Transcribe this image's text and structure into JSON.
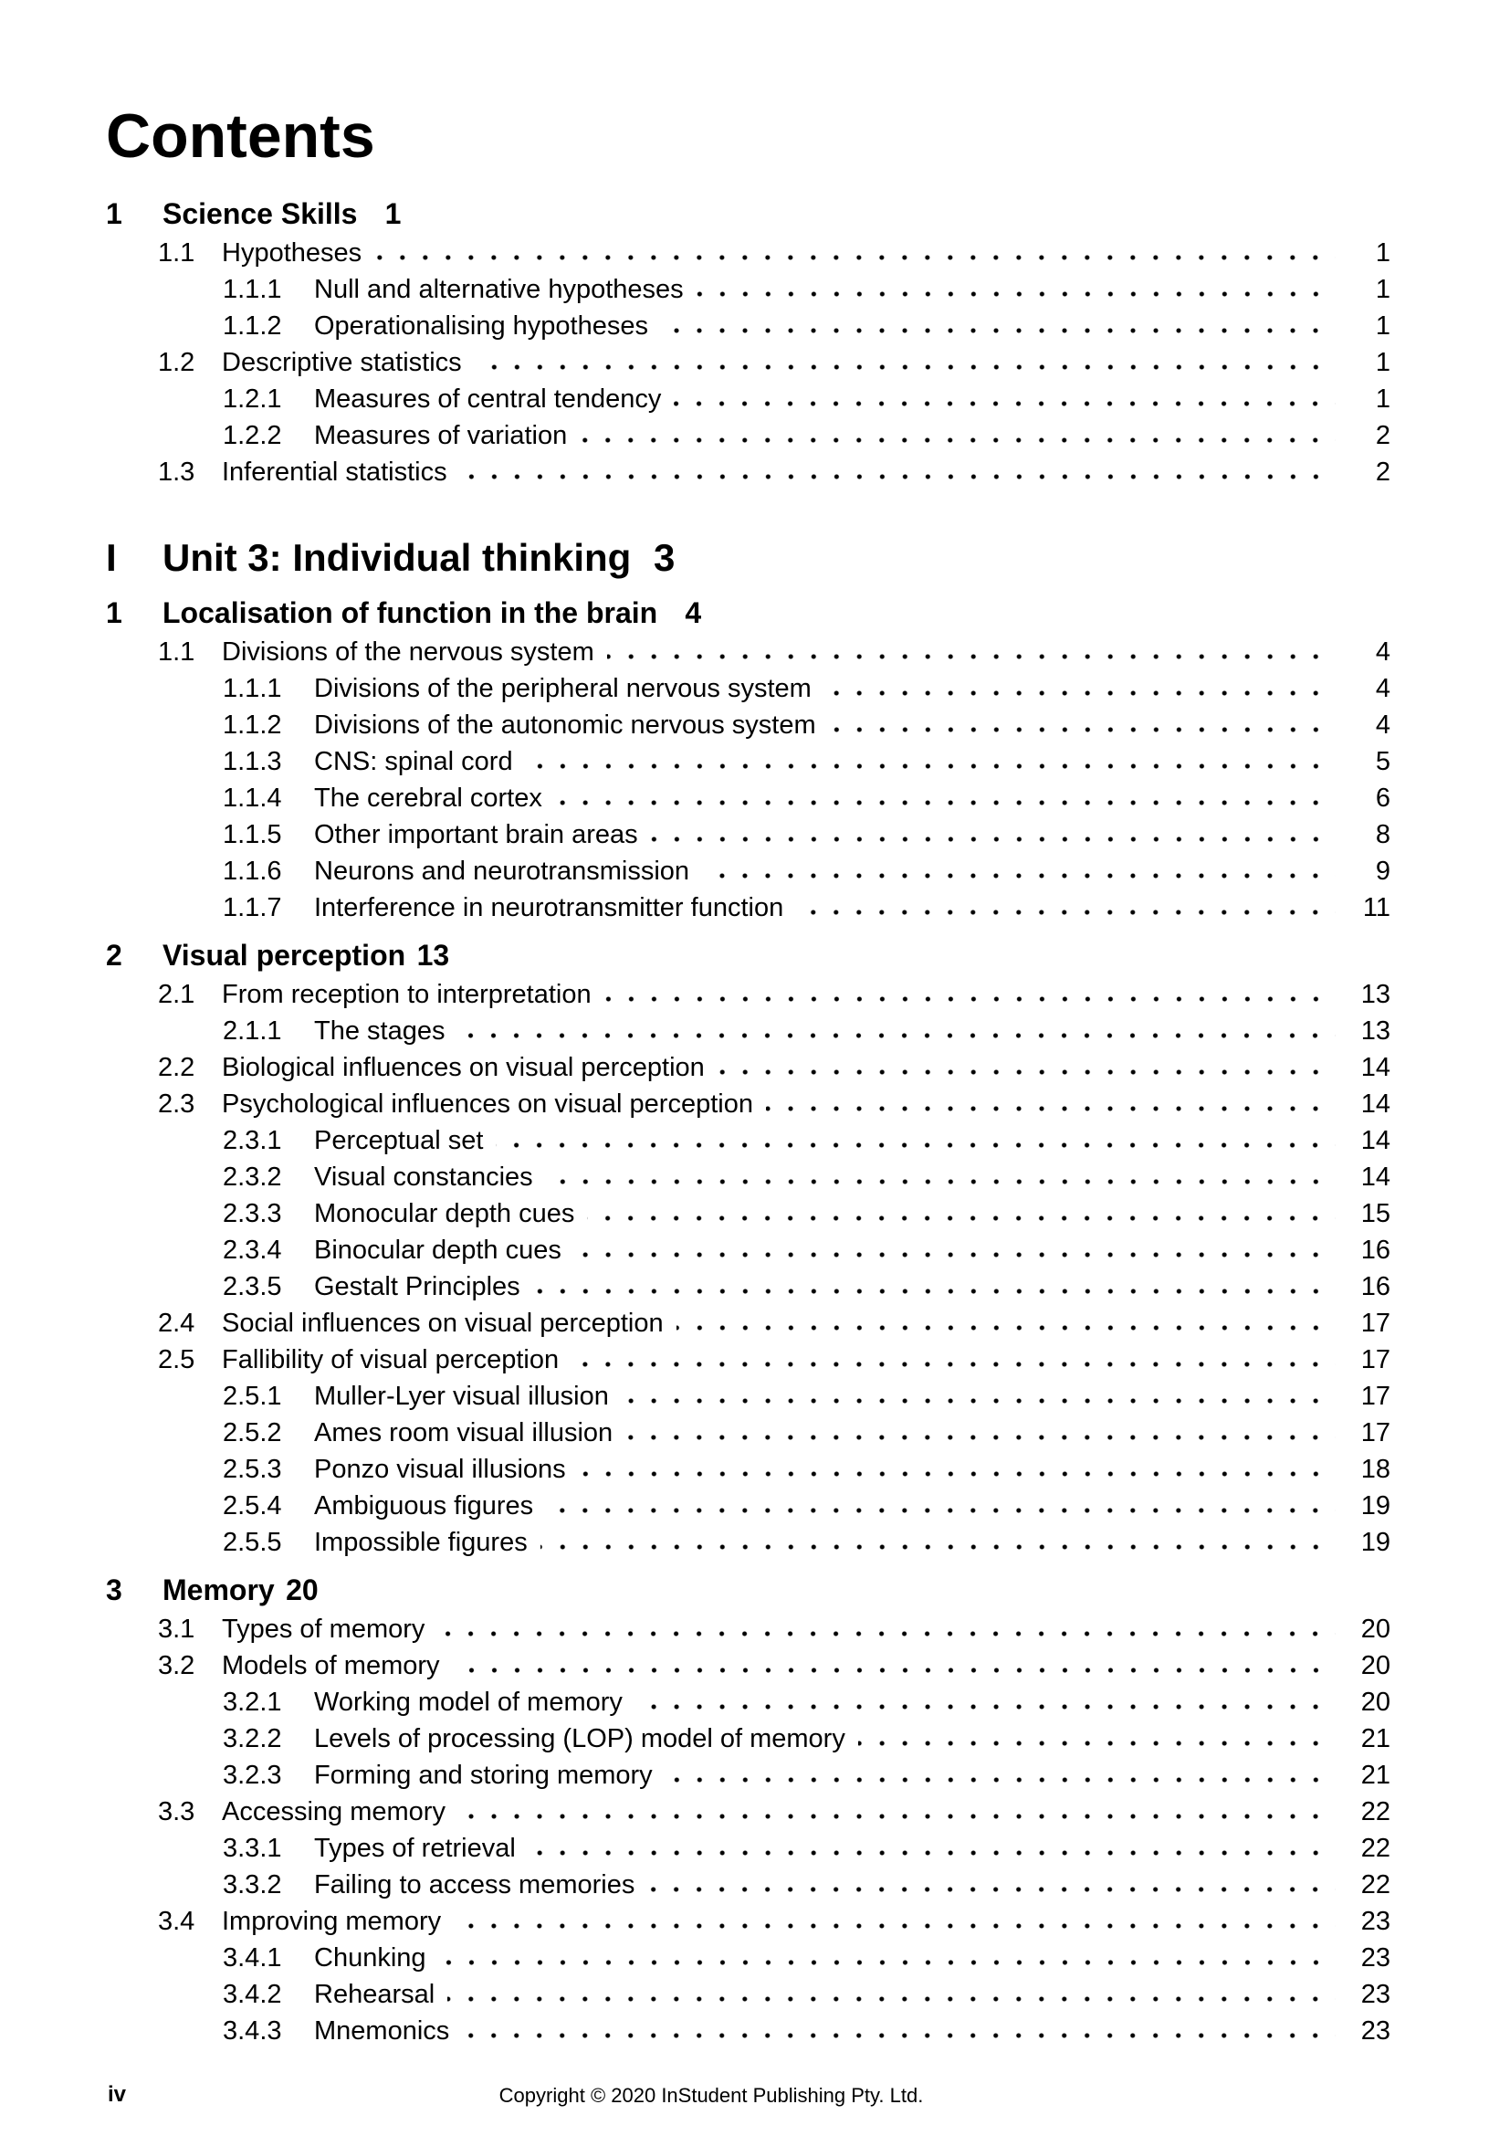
{
  "title": "Contents",
  "footer": {
    "page_label": "iv",
    "copyright": "Copyright © 2020 InStudent Publishing Pty. Ltd."
  },
  "toc": [
    {
      "level": "chapter",
      "number": "1",
      "title": "Science Skills",
      "page": "1"
    },
    {
      "level": "section",
      "number": "1.1",
      "title": "Hypotheses",
      "page": "1"
    },
    {
      "level": "subsection",
      "number": "1.1.1",
      "title": "Null and alternative hypotheses",
      "page": "1"
    },
    {
      "level": "subsection",
      "number": "1.1.2",
      "title": "Operationalising hypotheses",
      "page": "1"
    },
    {
      "level": "section",
      "number": "1.2",
      "title": "Descriptive statistics",
      "page": "1"
    },
    {
      "level": "subsection",
      "number": "1.2.1",
      "title": "Measures of central tendency",
      "page": "1"
    },
    {
      "level": "subsection",
      "number": "1.2.2",
      "title": "Measures of variation",
      "page": "2"
    },
    {
      "level": "section",
      "number": "1.3",
      "title": "Inferential statistics",
      "page": "2"
    },
    {
      "level": "part",
      "number": "I",
      "title": "Unit 3: Individual thinking",
      "page": "3"
    },
    {
      "level": "chapter",
      "number": "1",
      "title": "Localisation of function in the brain",
      "page": "4"
    },
    {
      "level": "section",
      "number": "1.1",
      "title": "Divisions of the nervous system",
      "page": "4"
    },
    {
      "level": "subsection",
      "number": "1.1.1",
      "title": "Divisions of the peripheral nervous system",
      "page": "4"
    },
    {
      "level": "subsection",
      "number": "1.1.2",
      "title": "Divisions of the autonomic nervous system",
      "page": "4"
    },
    {
      "level": "subsection",
      "number": "1.1.3",
      "title": "CNS: spinal cord",
      "page": "5"
    },
    {
      "level": "subsection",
      "number": "1.1.4",
      "title": "The cerebral cortex",
      "page": "6"
    },
    {
      "level": "subsection",
      "number": "1.1.5",
      "title": "Other important brain areas",
      "page": "8"
    },
    {
      "level": "subsection",
      "number": "1.1.6",
      "title": "Neurons and neurotransmission",
      "page": "9"
    },
    {
      "level": "subsection",
      "number": "1.1.7",
      "title": "Interference in neurotransmitter function",
      "page": "11"
    },
    {
      "level": "chapter",
      "number": "2",
      "title": "Visual perception",
      "page": "13"
    },
    {
      "level": "section",
      "number": "2.1",
      "title": "From reception to interpretation",
      "page": "13"
    },
    {
      "level": "subsection",
      "number": "2.1.1",
      "title": "The stages",
      "page": "13"
    },
    {
      "level": "section",
      "number": "2.2",
      "title": "Biological influences on visual perception",
      "page": "14"
    },
    {
      "level": "section",
      "number": "2.3",
      "title": "Psychological influences on visual perception",
      "page": "14"
    },
    {
      "level": "subsection",
      "number": "2.3.1",
      "title": "Perceptual set",
      "page": "14"
    },
    {
      "level": "subsection",
      "number": "2.3.2",
      "title": "Visual constancies",
      "page": "14"
    },
    {
      "level": "subsection",
      "number": "2.3.3",
      "title": "Monocular depth cues",
      "page": "15"
    },
    {
      "level": "subsection",
      "number": "2.3.4",
      "title": "Binocular depth cues",
      "page": "16"
    },
    {
      "level": "subsection",
      "number": "2.3.5",
      "title": "Gestalt Principles",
      "page": "16"
    },
    {
      "level": "section",
      "number": "2.4",
      "title": "Social influences on visual perception",
      "page": "17"
    },
    {
      "level": "section",
      "number": "2.5",
      "title": "Fallibility of visual perception",
      "page": "17"
    },
    {
      "level": "subsection",
      "number": "2.5.1",
      "title": "Muller-Lyer visual illusion",
      "page": "17"
    },
    {
      "level": "subsection",
      "number": "2.5.2",
      "title": "Ames room visual illusion",
      "page": "17"
    },
    {
      "level": "subsection",
      "number": "2.5.3",
      "title": "Ponzo visual illusions",
      "page": "18"
    },
    {
      "level": "subsection",
      "number": "2.5.4",
      "title": "Ambiguous figures",
      "page": "19"
    },
    {
      "level": "subsection",
      "number": "2.5.5",
      "title": "Impossible figures",
      "page": "19"
    },
    {
      "level": "chapter",
      "number": "3",
      "title": "Memory",
      "page": "20"
    },
    {
      "level": "section",
      "number": "3.1",
      "title": "Types of memory",
      "page": "20"
    },
    {
      "level": "section",
      "number": "3.2",
      "title": "Models of memory",
      "page": "20"
    },
    {
      "level": "subsection",
      "number": "3.2.1",
      "title": "Working model of memory",
      "page": "20"
    },
    {
      "level": "subsection",
      "number": "3.2.2",
      "title": "Levels of processing (LOP) model of memory",
      "page": "21"
    },
    {
      "level": "subsection",
      "number": "3.2.3",
      "title": "Forming and storing memory",
      "page": "21"
    },
    {
      "level": "section",
      "number": "3.3",
      "title": "Accessing memory",
      "page": "22"
    },
    {
      "level": "subsection",
      "number": "3.3.1",
      "title": "Types of retrieval",
      "page": "22"
    },
    {
      "level": "subsection",
      "number": "3.3.2",
      "title": "Failing to access memories",
      "page": "22"
    },
    {
      "level": "section",
      "number": "3.4",
      "title": "Improving memory",
      "page": "23"
    },
    {
      "level": "subsection",
      "number": "3.4.1",
      "title": "Chunking",
      "page": "23"
    },
    {
      "level": "subsection",
      "number": "3.4.2",
      "title": "Rehearsal",
      "page": "23"
    },
    {
      "level": "subsection",
      "number": "3.4.3",
      "title": "Mnemonics",
      "page": "23"
    }
  ]
}
